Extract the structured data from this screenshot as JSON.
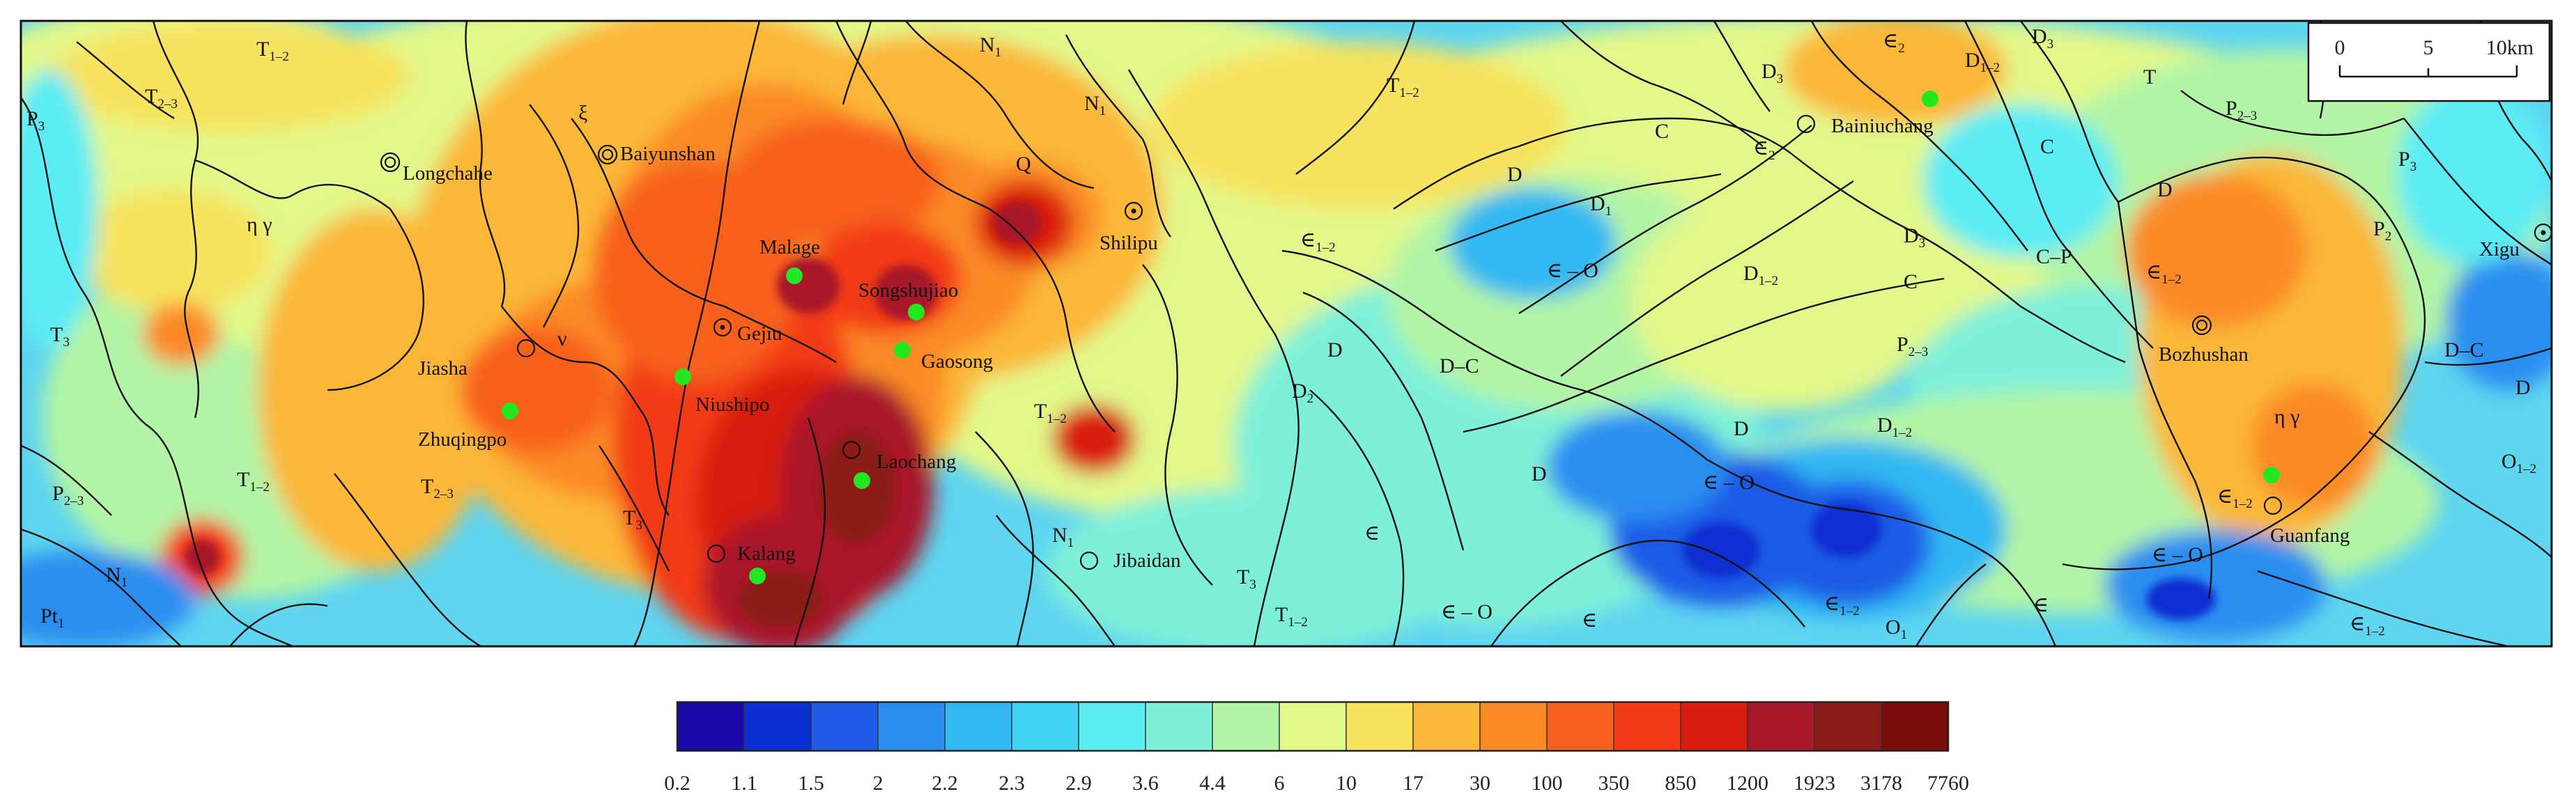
{
  "map": {
    "towns": [
      {
        "id": "longchahe",
        "name": "Longchahe",
        "symbol": "double-circle",
        "mineral": false
      },
      {
        "id": "baiyunshan",
        "name": "Baiyunshan",
        "symbol": "double-circle",
        "mineral": false
      },
      {
        "id": "malage",
        "name": "Malage",
        "symbol": "none",
        "mineral": true
      },
      {
        "id": "songshujiao",
        "name": "Songshujiao",
        "symbol": "none",
        "mineral": true
      },
      {
        "id": "gaosong",
        "name": "Gaosong",
        "symbol": "none",
        "mineral": true
      },
      {
        "id": "gejiu",
        "name": "Gejiu",
        "symbol": "dot-circle",
        "mineral": false
      },
      {
        "id": "niushipo",
        "name": "Niushipo",
        "symbol": "none",
        "mineral": true
      },
      {
        "id": "jiasha",
        "name": "Jiasha",
        "symbol": "circle",
        "mineral": false
      },
      {
        "id": "zhuqingpo",
        "name": "Zhuqingpo",
        "symbol": "none",
        "mineral": true
      },
      {
        "id": "laochang",
        "name": "Laochang",
        "symbol": "circle",
        "mineral": true
      },
      {
        "id": "kalang",
        "name": "Kalang",
        "symbol": "circle",
        "mineral": true
      },
      {
        "id": "jibaidan",
        "name": "Jibaidan",
        "symbol": "circle",
        "mineral": false
      },
      {
        "id": "shilipu",
        "name": "Shilipu",
        "symbol": "dot-circle",
        "mineral": false
      },
      {
        "id": "bainiuchang",
        "name": "Bainiuchang",
        "symbol": "circle",
        "mineral": true
      },
      {
        "id": "bozhushan",
        "name": "Bozhushan",
        "symbol": "double-circle",
        "mineral": false
      },
      {
        "id": "guanfang",
        "name": "Guanfang",
        "symbol": "circle",
        "mineral": true
      },
      {
        "id": "xigu",
        "name": "Xigu",
        "symbol": "dot-circle",
        "mineral": false
      }
    ],
    "units": [
      {
        "id": "u1",
        "base": "T",
        "sub": "1–2"
      },
      {
        "id": "u2",
        "base": "T",
        "sub": "2–3"
      },
      {
        "id": "u3",
        "base": "P",
        "sub": "3"
      },
      {
        "id": "u4",
        "base": "η γ",
        "sub": ""
      },
      {
        "id": "u5",
        "base": "ξ",
        "sub": ""
      },
      {
        "id": "u6",
        "base": "N",
        "sub": "1"
      },
      {
        "id": "u7",
        "base": "N",
        "sub": "1"
      },
      {
        "id": "u8",
        "base": "T",
        "sub": "1–2"
      },
      {
        "id": "u9",
        "base": "Q",
        "sub": ""
      },
      {
        "id": "u10",
        "base": "T",
        "sub": "3"
      },
      {
        "id": "u11",
        "base": "ν",
        "sub": ""
      },
      {
        "id": "u12",
        "base": "T",
        "sub": "2–3"
      },
      {
        "id": "u13",
        "base": "T",
        "sub": "1–2"
      },
      {
        "id": "u14",
        "base": "P",
        "sub": "2–3"
      },
      {
        "id": "u15",
        "base": "N",
        "sub": "1"
      },
      {
        "id": "u16",
        "base": "Pt",
        "sub": "1"
      },
      {
        "id": "u17",
        "base": "T",
        "sub": "3"
      },
      {
        "id": "u18",
        "base": "T",
        "sub": "1–2"
      },
      {
        "id": "u19",
        "base": "N",
        "sub": "1"
      },
      {
        "id": "u20",
        "base": "T",
        "sub": "3"
      },
      {
        "id": "u21",
        "base": "T",
        "sub": "1–2"
      },
      {
        "id": "u22",
        "base": "∈",
        "sub": "1–2"
      },
      {
        "id": "u23",
        "base": "D",
        "sub": ""
      },
      {
        "id": "u24",
        "base": "∈ – O",
        "sub": ""
      },
      {
        "id": "u25",
        "base": "D",
        "sub": ""
      },
      {
        "id": "u26",
        "base": "D",
        "sub": "2"
      },
      {
        "id": "u27",
        "base": "D–C",
        "sub": ""
      },
      {
        "id": "u28",
        "base": "D",
        "sub": ""
      },
      {
        "id": "u29",
        "base": "∈",
        "sub": ""
      },
      {
        "id": "u30",
        "base": "∈ – O",
        "sub": ""
      },
      {
        "id": "u31",
        "base": "∈",
        "sub": ""
      },
      {
        "id": "u32",
        "base": "D",
        "sub": "1"
      },
      {
        "id": "u33",
        "base": "C",
        "sub": ""
      },
      {
        "id": "u34",
        "base": "∈",
        "sub": "2"
      },
      {
        "id": "u35",
        "base": "D",
        "sub": "3"
      },
      {
        "id": "u36",
        "base": "∈",
        "sub": "2"
      },
      {
        "id": "u37",
        "base": "D",
        "sub": "1–2"
      },
      {
        "id": "u38",
        "base": "D",
        "sub": "3"
      },
      {
        "id": "u39",
        "base": "D",
        "sub": "1–2"
      },
      {
        "id": "u40",
        "base": "D",
        "sub": "3"
      },
      {
        "id": "u41",
        "base": "C",
        "sub": ""
      },
      {
        "id": "u42",
        "base": "P",
        "sub": "2–3"
      },
      {
        "id": "u43",
        "base": "D",
        "sub": ""
      },
      {
        "id": "u44",
        "base": "∈ – O",
        "sub": ""
      },
      {
        "id": "u45",
        "base": "D",
        "sub": "1–2"
      },
      {
        "id": "u46",
        "base": "∈",
        "sub": "1–2"
      },
      {
        "id": "u47",
        "base": "O",
        "sub": "1"
      },
      {
        "id": "u48",
        "base": "∈",
        "sub": ""
      },
      {
        "id": "u49",
        "base": "T",
        "sub": ""
      },
      {
        "id": "u50",
        "base": "P",
        "sub": "2–3"
      },
      {
        "id": "u51",
        "base": "C",
        "sub": ""
      },
      {
        "id": "u52",
        "base": "C–P",
        "sub": ""
      },
      {
        "id": "u53",
        "base": "D",
        "sub": ""
      },
      {
        "id": "u54",
        "base": "∈",
        "sub": "1–2"
      },
      {
        "id": "u55",
        "base": "P",
        "sub": "3"
      },
      {
        "id": "u56",
        "base": "P",
        "sub": "2"
      },
      {
        "id": "u57",
        "base": "η γ",
        "sub": ""
      },
      {
        "id": "u58",
        "base": "∈",
        "sub": "1–2"
      },
      {
        "id": "u59",
        "base": "∈ – O",
        "sub": ""
      },
      {
        "id": "u60",
        "base": "D–C",
        "sub": ""
      },
      {
        "id": "u61",
        "base": "D",
        "sub": ""
      },
      {
        "id": "u62",
        "base": "O",
        "sub": "1–2"
      },
      {
        "id": "u63",
        "base": "∈",
        "sub": "1–2"
      }
    ],
    "scale_bar": {
      "ticks": [
        "0",
        "5",
        "10km"
      ]
    }
  },
  "legend": {
    "colors": [
      "#1a0aa8",
      "#0a2fd0",
      "#1f5ae6",
      "#2a8ef0",
      "#32b8f2",
      "#3fd4f4",
      "#5cecf4",
      "#7ff0d8",
      "#b2f5a6",
      "#e2f88a",
      "#f7e35e",
      "#fbb738",
      "#fb8a26",
      "#f8601e",
      "#f23a14",
      "#d81e0e",
      "#a8182a",
      "#8b1a16",
      "#7a0d0a"
    ],
    "labels": [
      "0.2",
      "1.1",
      "1.5",
      "2",
      "2.2",
      "2.3",
      "2.9",
      "3.6",
      "4.4",
      "6",
      "10",
      "17",
      "30",
      "100",
      "350",
      "850",
      "1200",
      "1923",
      "3178",
      "7760"
    ]
  },
  "colors": {
    "background": "#5fd5f0",
    "boundary_line": "#111111",
    "mineral_point": "#22e822",
    "low": "#1a3fd6",
    "high": "#7a0d0a"
  }
}
